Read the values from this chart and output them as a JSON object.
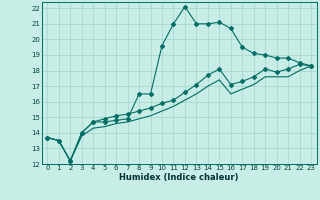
{
  "xlabel": "Humidex (Indice chaleur)",
  "background_color": "#c8ece6",
  "grid_color": "#a8d8d0",
  "line_color": "#006e64",
  "xlim": [
    -0.5,
    23.5
  ],
  "ylim": [
    12,
    22.4
  ],
  "xticks": [
    0,
    1,
    2,
    3,
    4,
    5,
    6,
    7,
    8,
    9,
    10,
    11,
    12,
    13,
    14,
    15,
    16,
    17,
    18,
    19,
    20,
    21,
    22,
    23
  ],
  "yticks": [
    12,
    13,
    14,
    15,
    16,
    17,
    18,
    19,
    20,
    21,
    22
  ],
  "series1_x": [
    0,
    1,
    2,
    3,
    4,
    5,
    6,
    7,
    8,
    9,
    10,
    11,
    12,
    13,
    14,
    15,
    16,
    17,
    18,
    19,
    20,
    21,
    22,
    23
  ],
  "series1_y": [
    13.7,
    13.5,
    12.2,
    14.0,
    14.7,
    14.7,
    14.8,
    14.9,
    16.5,
    16.5,
    19.6,
    21.0,
    22.1,
    21.0,
    21.0,
    21.1,
    20.7,
    19.5,
    19.1,
    19.0,
    18.8,
    18.8,
    18.5,
    18.3
  ],
  "series2_x": [
    0,
    1,
    2,
    3,
    4,
    5,
    6,
    7,
    8,
    9,
    10,
    11,
    12,
    13,
    14,
    15,
    16,
    17,
    18,
    19,
    20,
    21,
    22,
    23
  ],
  "series2_y": [
    13.7,
    13.5,
    12.2,
    14.0,
    14.7,
    14.9,
    15.1,
    15.2,
    15.4,
    15.6,
    15.9,
    16.1,
    16.6,
    17.1,
    17.7,
    18.1,
    17.1,
    17.3,
    17.6,
    18.1,
    17.9,
    18.1,
    18.4,
    18.3
  ],
  "series3_x": [
    0,
    1,
    2,
    3,
    4,
    5,
    6,
    7,
    8,
    9,
    10,
    11,
    12,
    13,
    14,
    15,
    16,
    17,
    18,
    19,
    20,
    21,
    22,
    23
  ],
  "series3_y": [
    13.7,
    13.5,
    12.2,
    13.8,
    14.3,
    14.4,
    14.6,
    14.7,
    14.9,
    15.1,
    15.4,
    15.7,
    16.1,
    16.5,
    17.0,
    17.4,
    16.5,
    16.8,
    17.1,
    17.6,
    17.6,
    17.6,
    18.0,
    18.3
  ]
}
